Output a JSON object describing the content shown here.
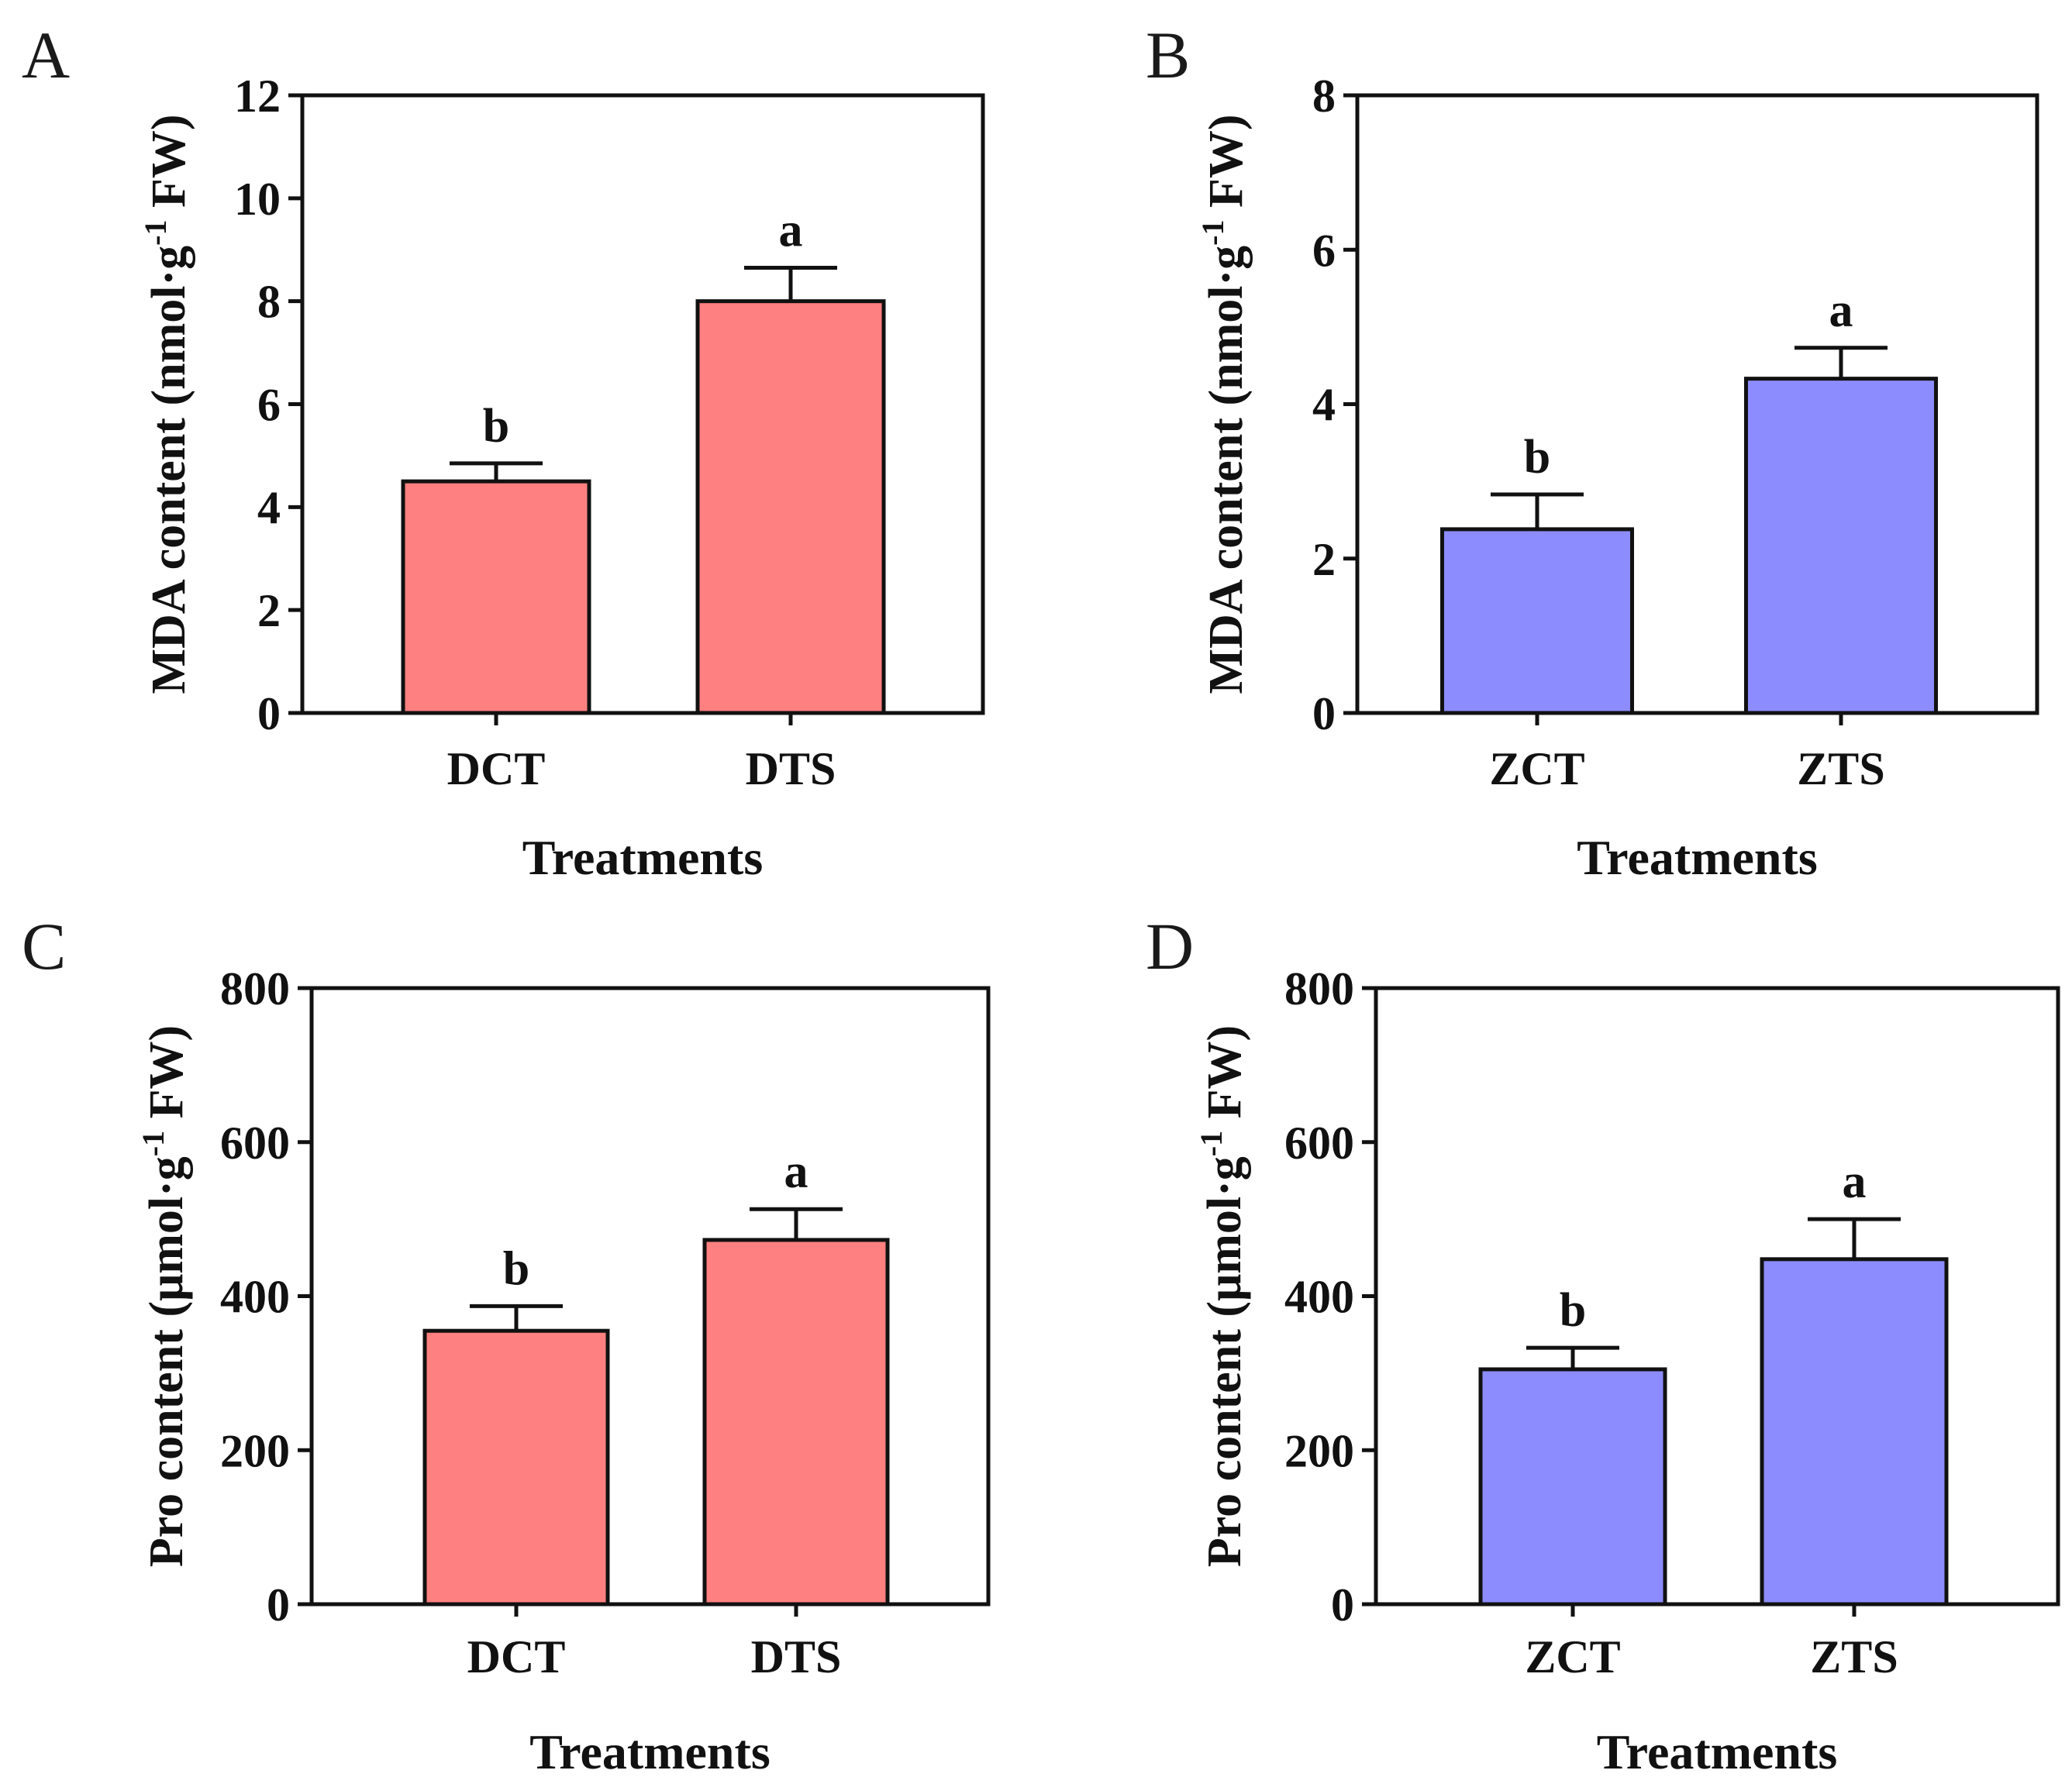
{
  "chart_data": [
    {
      "type": "bar",
      "panel": "A",
      "categories": [
        "DCT",
        "DTS"
      ],
      "values": [
        4.5,
        8.0
      ],
      "errors": [
        0.35,
        0.65
      ],
      "significance": [
        "b",
        "a"
      ],
      "xlabel": "Treatments",
      "ylabel": "MDA content (nmol·g",
      "ylabel_sup": "-1",
      "ylabel_tail": " FW)",
      "ylim": [
        0,
        12
      ],
      "yticks": [
        "0",
        "2",
        "4",
        "6",
        "8",
        "10",
        "12"
      ],
      "color": "#ff8080"
    },
    {
      "type": "bar",
      "panel": "B",
      "categories": [
        "ZCT",
        "ZTS"
      ],
      "values": [
        2.38,
        4.33
      ],
      "errors": [
        0.45,
        0.4
      ],
      "significance": [
        "b",
        "a"
      ],
      "xlabel": "Treatments",
      "ylabel": "MDA content (nmol·g",
      "ylabel_sup": "-1",
      "ylabel_tail": " FW)",
      "ylim": [
        0,
        8
      ],
      "yticks": [
        "0",
        "2",
        "4",
        "6",
        "8"
      ],
      "color": "#8c8cff"
    },
    {
      "type": "bar",
      "panel": "C",
      "categories": [
        "DCT",
        "DTS"
      ],
      "values": [
        355,
        473
      ],
      "errors": [
        32,
        40
      ],
      "significance": [
        "b",
        "a"
      ],
      "xlabel": "Treatments",
      "ylabel": "Pro content (μmol·g",
      "ylabel_sup": "-1",
      "ylabel_tail": " FW)",
      "ylim": [
        0,
        800
      ],
      "yticks": [
        "0",
        "200",
        "400",
        "600",
        "800"
      ],
      "color": "#ff8080"
    },
    {
      "type": "bar",
      "panel": "D",
      "categories": [
        "ZCT",
        "ZTS"
      ],
      "values": [
        305,
        448
      ],
      "errors": [
        28,
        52
      ],
      "significance": [
        "b",
        "a"
      ],
      "xlabel": "Treatments",
      "ylabel": "Pro content (μmol·g",
      "ylabel_sup": "-1",
      "ylabel_tail": " FW)",
      "ylim": [
        0,
        800
      ],
      "yticks": [
        "0",
        "200",
        "400",
        "600",
        "800"
      ],
      "color": "#8c8cff"
    }
  ]
}
